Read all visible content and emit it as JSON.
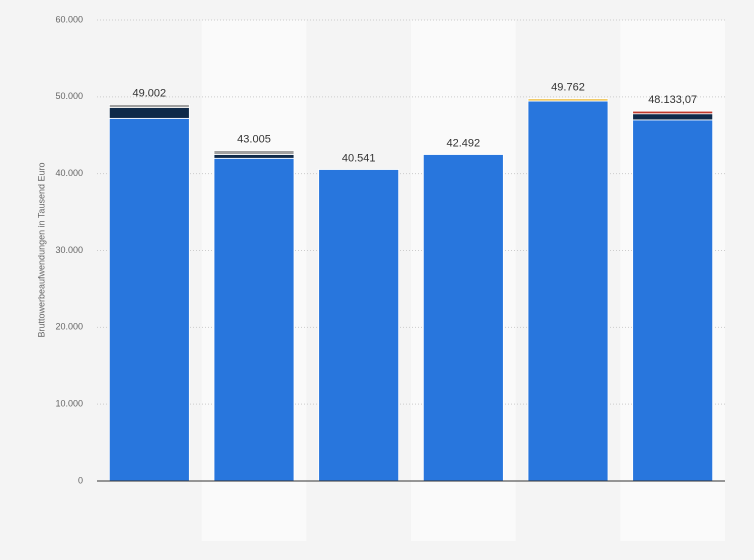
{
  "chart_data": {
    "type": "bar",
    "stacked": true,
    "y_label": "Bruttowerbeaufwendungen in Tausend Euro",
    "categories": [
      null,
      null,
      null,
      null,
      null,
      null
    ],
    "series": [
      {
        "color": "#2876dd",
        "values": [
          47200,
          42000,
          40541,
          42492,
          49450,
          47000
        ]
      },
      {
        "color": "#0f2a4a",
        "values": [
          1400,
          500,
          0,
          0,
          0,
          800
        ]
      },
      {
        "color": "#a0a0a0",
        "values": [
          402,
          505,
          0,
          0,
          0,
          0
        ]
      },
      {
        "color": "#f0c75e",
        "values": [
          0,
          0,
          0,
          0,
          312,
          0
        ]
      },
      {
        "color": "#c0392b",
        "values": [
          0,
          0,
          0,
          0,
          0,
          333.07
        ]
      }
    ],
    "totals": [
      49002,
      43005,
      40541,
      42492,
      49762,
      48133.07
    ],
    "value_labels": [
      "49.002",
      "43.005",
      "40.541",
      "42.492",
      "49.762",
      "48.133,07"
    ],
    "ylim": [
      0,
      60000
    ],
    "yticks": [
      {
        "value": 0,
        "label": "0"
      },
      {
        "value": 10000,
        "label": "10.000"
      },
      {
        "value": 20000,
        "label": "20.000"
      },
      {
        "value": 30000,
        "label": "30.000"
      },
      {
        "value": 40000,
        "label": "40.000"
      },
      {
        "value": 50000,
        "label": "50.000"
      },
      {
        "value": 60000,
        "label": "60.000"
      }
    ],
    "grid": true
  }
}
